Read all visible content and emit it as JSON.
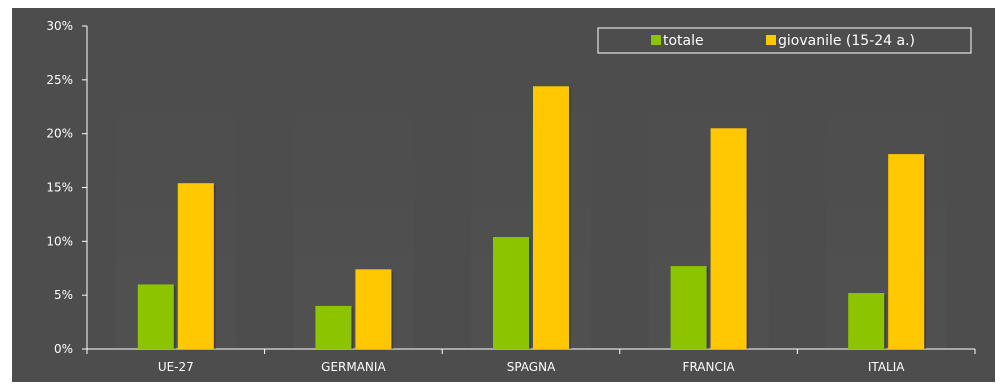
{
  "chart_data": {
    "type": "bar",
    "title": "",
    "xlabel": "",
    "ylabel": "",
    "ylim": [
      0,
      30
    ],
    "yticks": [
      "0%",
      "5%",
      "10%",
      "15%",
      "20%",
      "25%",
      "30%"
    ],
    "ytick_values": [
      0,
      5,
      10,
      15,
      20,
      25,
      30
    ],
    "categories": [
      "UE-27",
      "GERMANIA",
      "SPAGNA",
      "FRANCIA",
      "ITALIA"
    ],
    "series": [
      {
        "name": "totale",
        "values": [
          6.0,
          4.0,
          10.4,
          7.7,
          5.2
        ],
        "color": "#8dc400"
      },
      {
        "name": "giovanile (15-24 a.)",
        "values": [
          15.4,
          7.4,
          24.4,
          20.5,
          18.1
        ],
        "color": "#ffc800"
      }
    ],
    "legend": {
      "position": "top-right"
    },
    "grid": false,
    "background": "#4d4d4d",
    "text_color": "#ffffff"
  }
}
